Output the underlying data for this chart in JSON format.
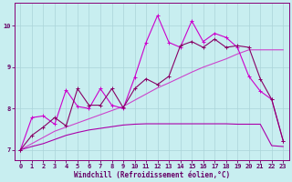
{
  "xlabel": "Windchill (Refroidissement éolien,°C)",
  "bg_color": "#c8eef0",
  "grid_color": "#aad4d8",
  "line_color_smooth1": "#cc44cc",
  "line_color_smooth2": "#aa00aa",
  "line_color_jagged1": "#cc00cc",
  "line_color_jagged2": "#880066",
  "xlim": [
    -0.5,
    23.5
  ],
  "ylim": [
    6.75,
    10.55
  ],
  "xticks": [
    0,
    1,
    2,
    3,
    4,
    5,
    6,
    7,
    8,
    9,
    10,
    11,
    12,
    13,
    14,
    15,
    16,
    17,
    18,
    19,
    20,
    21,
    22,
    23
  ],
  "yticks": [
    7,
    8,
    9,
    10
  ],
  "series_smooth1_x": [
    0,
    1,
    2,
    3,
    4,
    5,
    6,
    7,
    8,
    9,
    10,
    11,
    12,
    13,
    14,
    15,
    16,
    17,
    18,
    19,
    20,
    21,
    22,
    23
  ],
  "series_smooth1_y": [
    7.0,
    7.15,
    7.3,
    7.45,
    7.55,
    7.65,
    7.75,
    7.85,
    7.95,
    8.05,
    8.2,
    8.35,
    8.5,
    8.62,
    8.75,
    8.88,
    9.0,
    9.1,
    9.2,
    9.32,
    9.42,
    9.42,
    9.42,
    9.42
  ],
  "series_smooth2_x": [
    0,
    1,
    2,
    3,
    4,
    5,
    6,
    7,
    8,
    9,
    10,
    11,
    12,
    13,
    14,
    15,
    16,
    17,
    18,
    19,
    20,
    21,
    22,
    23
  ],
  "series_smooth2_y": [
    7.0,
    7.08,
    7.15,
    7.25,
    7.35,
    7.42,
    7.48,
    7.52,
    7.56,
    7.6,
    7.62,
    7.63,
    7.63,
    7.63,
    7.63,
    7.63,
    7.63,
    7.63,
    7.63,
    7.62,
    7.62,
    7.62,
    7.1,
    7.08
  ],
  "series_jagged1_x": [
    0,
    1,
    2,
    3,
    4,
    5,
    6,
    7,
    8,
    9,
    10,
    11,
    12,
    13,
    14,
    15,
    16,
    17,
    18,
    19,
    20,
    21,
    22,
    23
  ],
  "series_jagged1_y": [
    7.0,
    7.78,
    7.82,
    7.62,
    8.45,
    8.05,
    8.0,
    8.48,
    8.08,
    8.0,
    8.75,
    9.6,
    10.25,
    9.6,
    9.48,
    10.12,
    9.62,
    9.82,
    9.72,
    9.48,
    8.78,
    8.42,
    8.22,
    7.22
  ],
  "series_jagged2_x": [
    0,
    1,
    2,
    3,
    4,
    5,
    6,
    7,
    8,
    9,
    10,
    11,
    12,
    13,
    14,
    15,
    16,
    17,
    18,
    19,
    20,
    21,
    22,
    23
  ],
  "series_jagged2_y": [
    7.0,
    7.35,
    7.55,
    7.78,
    7.58,
    8.48,
    8.08,
    8.08,
    8.48,
    8.02,
    8.48,
    8.72,
    8.58,
    8.78,
    9.52,
    9.62,
    9.48,
    9.68,
    9.48,
    9.52,
    9.48,
    8.72,
    8.22,
    7.22
  ],
  "marker": "+",
  "markersize": 3,
  "linewidth": 0.8,
  "tick_fontsize": 5,
  "label_fontsize": 5.5
}
